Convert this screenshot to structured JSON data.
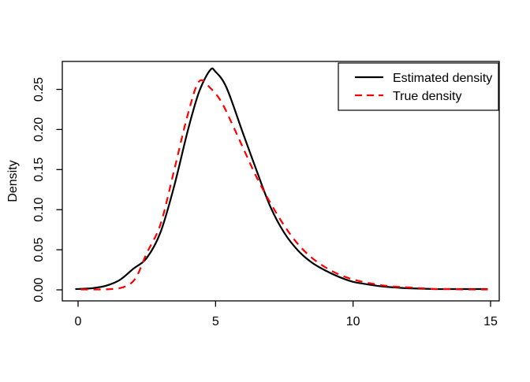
{
  "figure": {
    "background": "#ffffff",
    "frame_color": "#000000"
  },
  "chart_data": {
    "type": "line",
    "title": "",
    "xlabel": "",
    "ylabel": "Density",
    "xlim": [
      0,
      15
    ],
    "ylim": [
      0,
      0.285
    ],
    "grid": false,
    "x_ticks": [
      0,
      5,
      10,
      15
    ],
    "x_tick_labels": [
      "0",
      "5",
      "10",
      "15"
    ],
    "y_ticks": [
      0.0,
      0.05,
      0.1,
      0.15,
      0.2,
      0.25
    ],
    "y_tick_labels": [
      "0.00",
      "0.05",
      "0.10",
      "0.15",
      "0.20",
      "0.25"
    ],
    "legend": {
      "position": "topright",
      "entries": [
        {
          "label": "Estimated density",
          "color": "#000000",
          "style": "solid"
        },
        {
          "label": "True density",
          "color": "#ff0000",
          "style": "dashed"
        }
      ]
    },
    "series": [
      {
        "name": "Estimated density",
        "color": "#000000",
        "style": "solid",
        "points": [
          [
            -0.1,
            0.001
          ],
          [
            0.5,
            0.002
          ],
          [
            1.0,
            0.005
          ],
          [
            1.5,
            0.012
          ],
          [
            2.0,
            0.026
          ],
          [
            2.5,
            0.04
          ],
          [
            3.0,
            0.072
          ],
          [
            3.5,
            0.13
          ],
          [
            4.0,
            0.2
          ],
          [
            4.4,
            0.247
          ],
          [
            4.8,
            0.274
          ],
          [
            5.0,
            0.272
          ],
          [
            5.4,
            0.252
          ],
          [
            6.0,
            0.195
          ],
          [
            6.5,
            0.148
          ],
          [
            7.0,
            0.103
          ],
          [
            7.5,
            0.071
          ],
          [
            8.0,
            0.049
          ],
          [
            8.5,
            0.034
          ],
          [
            9.0,
            0.024
          ],
          [
            9.5,
            0.016
          ],
          [
            10.0,
            0.01
          ],
          [
            10.5,
            0.007
          ],
          [
            11.0,
            0.0045
          ],
          [
            11.5,
            0.003
          ],
          [
            12.0,
            0.002
          ],
          [
            12.5,
            0.0015
          ],
          [
            13.0,
            0.001
          ],
          [
            13.5,
            0.001
          ],
          [
            14.0,
            0.001
          ],
          [
            14.9,
            0.001
          ]
        ]
      },
      {
        "name": "True density",
        "color": "#ff0000",
        "style": "dashed",
        "points": [
          [
            0.1,
            0.0005
          ],
          [
            0.7,
            0.0005
          ],
          [
            1.2,
            0.001
          ],
          [
            1.7,
            0.004
          ],
          [
            2.1,
            0.015
          ],
          [
            2.5,
            0.046
          ],
          [
            3.0,
            0.082
          ],
          [
            3.5,
            0.15
          ],
          [
            4.0,
            0.22
          ],
          [
            4.4,
            0.26
          ],
          [
            4.8,
            0.252
          ],
          [
            5.2,
            0.235
          ],
          [
            5.6,
            0.207
          ],
          [
            6.0,
            0.177
          ],
          [
            6.5,
            0.14
          ],
          [
            7.0,
            0.108
          ],
          [
            7.5,
            0.08
          ],
          [
            8.0,
            0.057
          ],
          [
            8.5,
            0.04
          ],
          [
            9.0,
            0.028
          ],
          [
            9.5,
            0.019
          ],
          [
            10.0,
            0.013
          ],
          [
            10.5,
            0.009
          ],
          [
            11.0,
            0.006
          ],
          [
            11.5,
            0.004
          ],
          [
            12.0,
            0.003
          ],
          [
            12.5,
            0.002
          ],
          [
            13.0,
            0.001
          ],
          [
            13.5,
            0.001
          ],
          [
            14.0,
            0.0005
          ],
          [
            14.9,
            0.0005
          ]
        ]
      }
    ]
  }
}
